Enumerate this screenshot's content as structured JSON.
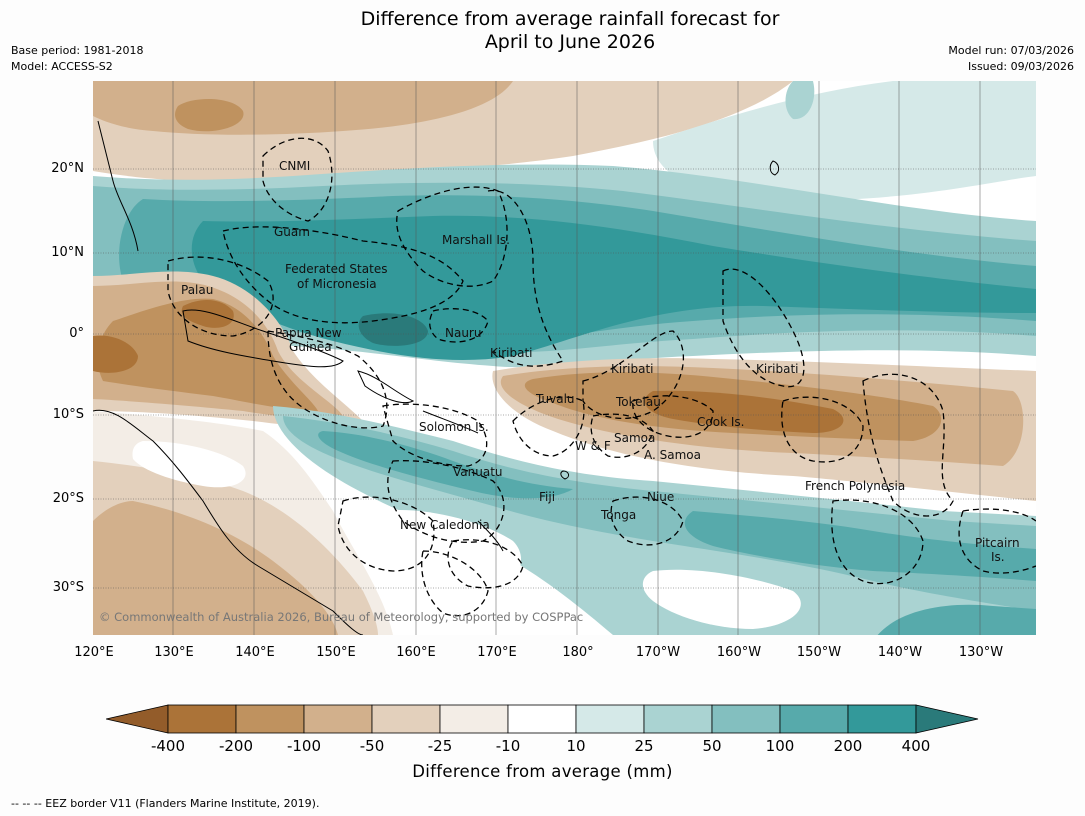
{
  "title_line1": "Difference from average rainfall forecast for",
  "title_line2": "April to June 2026",
  "base_period": "Base period: 1981-2018",
  "model": "Model: ACCESS-S2",
  "model_run": "Model run: 07/03/2026",
  "issued": "Issued: 09/03/2026",
  "lat_labels": [
    "20°N",
    "10°N",
    "0°",
    "10°S",
    "20°S",
    "30°S"
  ],
  "lon_labels": [
    "120°E",
    "130°E",
    "140°E",
    "150°E",
    "160°E",
    "170°E",
    "180°",
    "170°W",
    "160°W",
    "150°W",
    "140°W",
    "130°W"
  ],
  "map_labels": {
    "cnmi": "CNMI",
    "guam": "Guam",
    "marshall": "Marshall Is.",
    "fsm1": "Federated States",
    "fsm2": "of Micronesia",
    "palau": "Palau",
    "png1": "Papua New",
    "png2": "Guinea",
    "nauru": "Nauru",
    "kiribati_w": "Kiribati",
    "kiribati_c": "Kiribati",
    "kiribati_e": "Kiribati",
    "tuvalu": "Tuvalu",
    "tokelau": "Tokelau",
    "cook": "Cook Is.",
    "solomon": "Solomon Is.",
    "wf": "W & F",
    "samoa": "Samoa",
    "asamoa": "A. Samoa",
    "vanuatu": "Vanuatu",
    "fiji": "Fiji",
    "niue": "Niue",
    "tonga": "Tonga",
    "frpoly": "French Polynesia",
    "newcal": "New Caledonia",
    "pitcairn1": "Pitcairn",
    "pitcairn2": "Is."
  },
  "copyright": "© Commonwealth of Australia 2026, Bureau of Meteorology, supported by COSPPac",
  "colorbar": {
    "labels": [
      "-400",
      "-200",
      "-100",
      "-50",
      "-25",
      "-10",
      "10",
      "25",
      "50",
      "100",
      "200",
      "400"
    ],
    "colors": [
      "#ab7338",
      "#bf925f",
      "#d2b08c",
      "#e3d0bc",
      "#f3ede6",
      "#ffffff",
      "#d5e9e8",
      "#aad3d2",
      "#83bfbf",
      "#57aaab",
      "#33999a"
    ],
    "low_extend_color": "#935c2a",
    "high_extend_color": "#2a7a7a",
    "title": "Difference from average (mm)"
  },
  "footer": "--  --  -- EEZ border V11 (Flanders Marine Institute, 2019)."
}
